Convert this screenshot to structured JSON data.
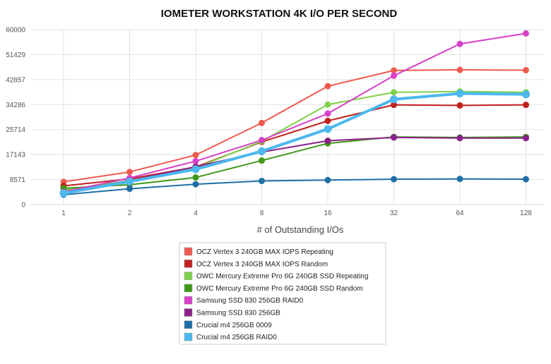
{
  "chart_data": {
    "type": "line",
    "title": "IOMETER WORKSTATION 4K I/O PER SECOND",
    "xlabel": "# of Outstanding I/Os",
    "ylabel": "",
    "categories": [
      "1",
      "2",
      "4",
      "8",
      "16",
      "32",
      "64",
      "128"
    ],
    "yticks": [
      "0",
      "8571",
      "17143",
      "25714",
      "34286",
      "42857",
      "51429",
      "60000"
    ],
    "ylim": [
      0,
      60000
    ],
    "grid": true,
    "legend_position": "bottom-center",
    "series": [
      {
        "name": "OCZ Vertex 3 240GB MAX IOPS Repeating",
        "color": "#ef5a50",
        "values": [
          7800,
          11200,
          17000,
          28000,
          40600,
          46000,
          46200,
          46100
        ]
      },
      {
        "name": "OCZ Vertex 3 240GB MAX IOPS Random",
        "color": "#c0211d",
        "values": [
          6400,
          8800,
          12900,
          21500,
          28700,
          34200,
          34000,
          34200
        ]
      },
      {
        "name": "OWC Mercury Extreme Pro 6G 240GB SSD Repeating",
        "color": "#7fd14a",
        "values": [
          5000,
          8200,
          12600,
          21700,
          34300,
          38500,
          38800,
          38500
        ]
      },
      {
        "name": "OWC Mercury Extreme Pro 6G 240GB SSD Random",
        "color": "#3f9a17",
        "values": [
          5600,
          6800,
          9300,
          15100,
          21000,
          23200,
          23000,
          23200
        ]
      },
      {
        "name": "Samsung SSD 830 256GB RAID0",
        "color": "#d640c8",
        "values": [
          4400,
          9100,
          14900,
          22100,
          31200,
          44200,
          55100,
          58700
        ]
      },
      {
        "name": "Samsung SSD 830 256GB",
        "color": "#8a2188",
        "values": [
          4100,
          8200,
          13000,
          18000,
          21900,
          23000,
          22800,
          22800
        ]
      },
      {
        "name": "Crucial m4 256GB 0009",
        "color": "#1f6fa6",
        "values": [
          3400,
          5400,
          7000,
          8100,
          8400,
          8700,
          8800,
          8700
        ]
      },
      {
        "name": "Crucial m4 256GB RAID0",
        "color": "#4cb8ee",
        "values": [
          3900,
          7900,
          12100,
          18300,
          25900,
          36100,
          38100,
          37800
        ]
      }
    ]
  }
}
